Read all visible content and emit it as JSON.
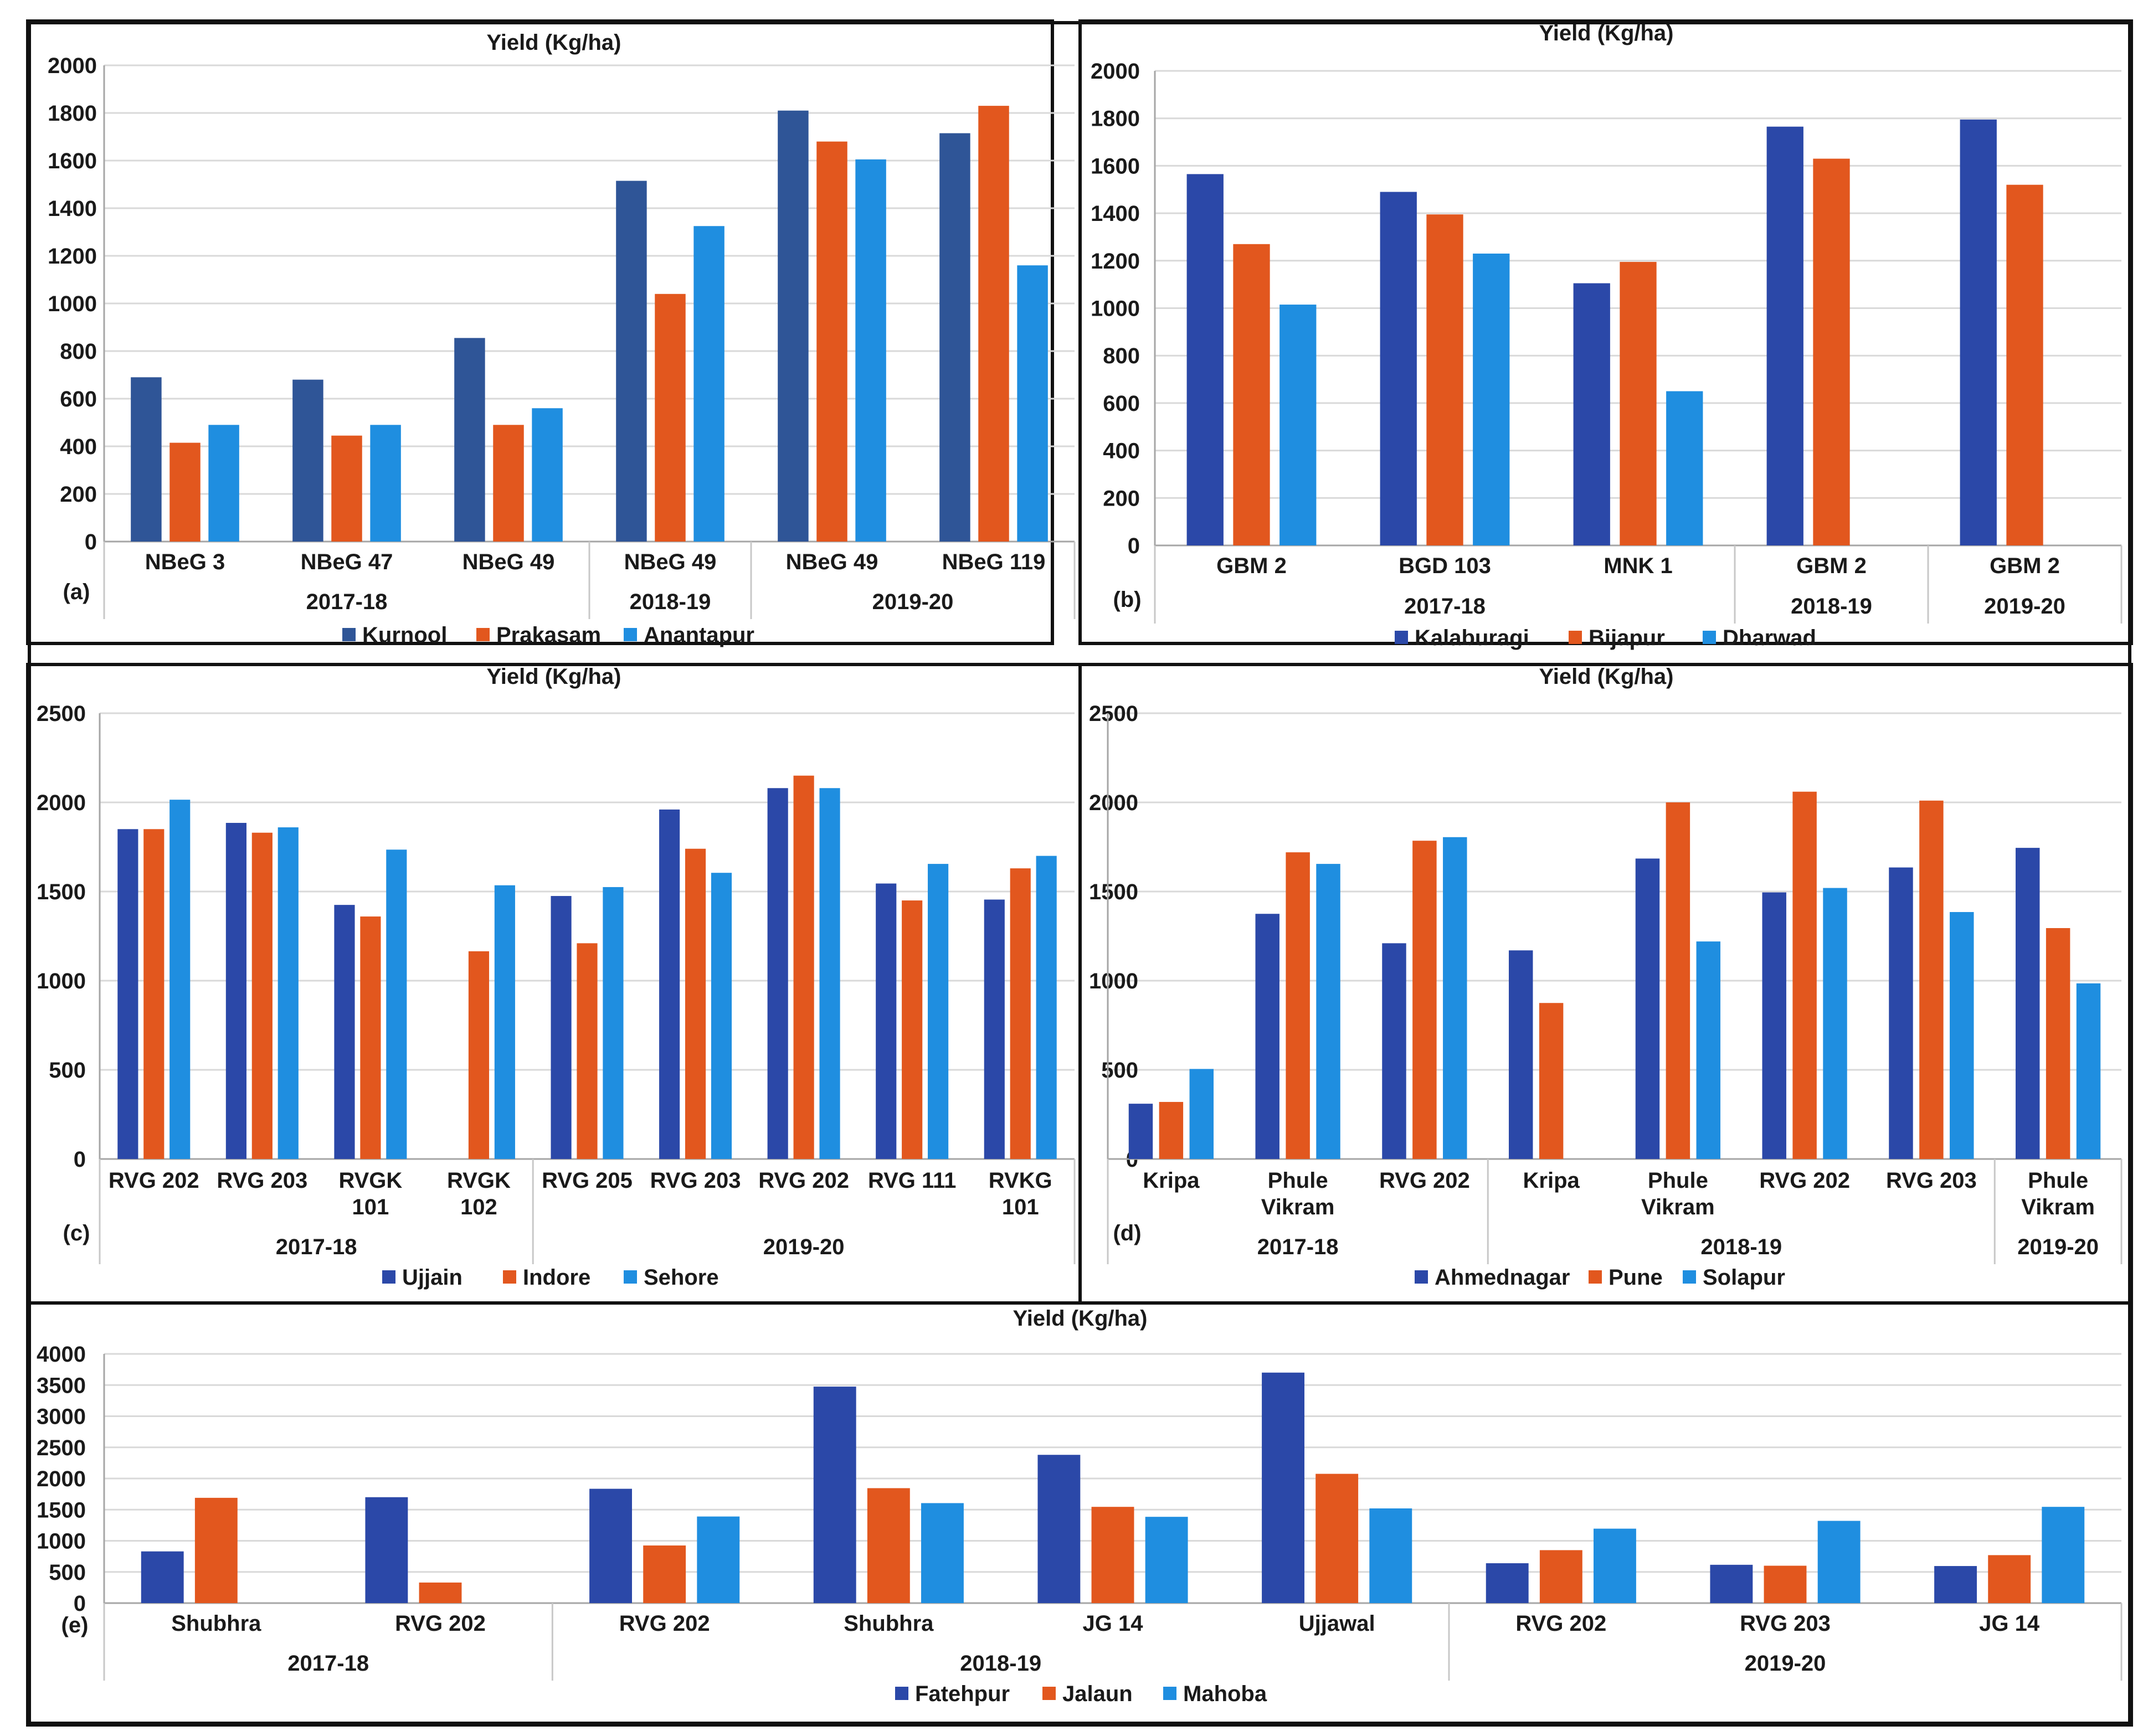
{
  "colors": {
    "gridline": "#d9d9d9",
    "axis": "#a6a6a6",
    "text": "#1a1a1a"
  },
  "chart_data": [
    {
      "id": "a",
      "type": "bar",
      "title": "Yield (Kg/ha)",
      "panel_label": "(a)",
      "ylim": [
        0,
        2000
      ],
      "yticks": [
        0,
        200,
        400,
        600,
        800,
        1000,
        1200,
        1400,
        1600,
        1800,
        2000
      ],
      "categories": [
        "NBeG 3",
        "NBeG 47",
        "NBeG 49",
        "NBeG 49",
        "NBeG 49",
        "NBeG 119"
      ],
      "groups": [
        {
          "label": "2017-18",
          "span": 3
        },
        {
          "label": "2018-19",
          "span": 1
        },
        {
          "label": "2019-20",
          "span": 2
        }
      ],
      "series": [
        {
          "name": "Kurnool",
          "color": "#2f5597",
          "values": [
            690,
            680,
            855,
            1515,
            1810,
            1715
          ]
        },
        {
          "name": "Prakasam",
          "color": "#e2571e",
          "values": [
            415,
            445,
            490,
            1040,
            1680,
            1830
          ]
        },
        {
          "name": "Anantapur",
          "color": "#1f8ee0",
          "values": [
            490,
            490,
            560,
            1325,
            1605,
            1160
          ]
        }
      ],
      "grid": true
    },
    {
      "id": "b",
      "type": "bar",
      "title": "Yield (Kg/ha)",
      "panel_label": "(b)",
      "ylim": [
        0,
        2000
      ],
      "yticks": [
        0,
        200,
        400,
        600,
        800,
        1000,
        1200,
        1400,
        1600,
        1800,
        2000
      ],
      "categories": [
        "GBM 2",
        "BGD 103",
        "MNK 1",
        "GBM 2",
        "GBM 2"
      ],
      "groups": [
        {
          "label": "2017-18",
          "span": 3
        },
        {
          "label": "2018-19",
          "span": 1
        },
        {
          "label": "2019-20",
          "span": 1
        }
      ],
      "series": [
        {
          "name": "Kalaburagi",
          "color": "#2b48a8",
          "values": [
            1565,
            1490,
            1105,
            1765,
            1795
          ]
        },
        {
          "name": "Bijapur",
          "color": "#e2571e",
          "values": [
            1270,
            1395,
            1195,
            1630,
            1520
          ]
        },
        {
          "name": "Dharwad",
          "color": "#1f8ee0",
          "values": [
            1015,
            1230,
            650,
            null,
            null
          ]
        }
      ],
      "grid": true
    },
    {
      "id": "c",
      "type": "bar",
      "title": "Yield (Kg/ha)",
      "panel_label": "(c)",
      "ylim": [
        0,
        2500
      ],
      "yticks": [
        0,
        500,
        1000,
        1500,
        2000,
        2500
      ],
      "categories": [
        "RVG 202",
        "RVG 203",
        "RVGK\n101",
        "RVGK\n102",
        "RVG 205",
        "RVG 203",
        "RVG 202",
        "RVG 111",
        "RVKG\n101"
      ],
      "groups": [
        {
          "label": "2017-18",
          "span": 4
        },
        {
          "label": "2019-20",
          "span": 5
        }
      ],
      "series": [
        {
          "name": "Ujjain",
          "color": "#2b48a8",
          "values": [
            1850,
            1885,
            1425,
            null,
            1475,
            1960,
            2080,
            1545,
            1455
          ]
        },
        {
          "name": "Indore",
          "color": "#e2571e",
          "values": [
            1850,
            1830,
            1360,
            1165,
            1210,
            1740,
            2150,
            1450,
            1630
          ]
        },
        {
          "name": "Sehore",
          "color": "#1f8ee0",
          "values": [
            2015,
            1860,
            1735,
            1535,
            1525,
            1605,
            2080,
            1655,
            1700
          ]
        }
      ],
      "grid": true
    },
    {
      "id": "d",
      "type": "bar",
      "title": "Yield (Kg/ha)",
      "panel_label": "(d)",
      "ylim": [
        0,
        2500
      ],
      "yticks": [
        0,
        500,
        1000,
        1500,
        2000,
        2500
      ],
      "categories": [
        "Kripa",
        "Phule\nVikram",
        "RVG 202",
        "Kripa",
        "Phule\nVikram",
        "RVG 202",
        "RVG 203",
        "Phule\nVikram"
      ],
      "groups": [
        {
          "label": "2017-18",
          "span": 3
        },
        {
          "label": "2018-19",
          "span": 4
        },
        {
          "label": "2019-20",
          "span": 1
        }
      ],
      "series": [
        {
          "name": "Ahmednagar",
          "color": "#2b48a8",
          "values": [
            310,
            1375,
            1210,
            1170,
            1685,
            1495,
            1635,
            1745
          ]
        },
        {
          "name": "Pune",
          "color": "#e2571e",
          "values": [
            320,
            1720,
            1785,
            875,
            2000,
            2060,
            2010,
            1295
          ]
        },
        {
          "name": "Solapur",
          "color": "#1f8ee0",
          "values": [
            505,
            1655,
            1805,
            null,
            1220,
            1520,
            1385,
            985
          ]
        }
      ],
      "grid": true
    },
    {
      "id": "e",
      "type": "bar",
      "title": "Yield (Kg/ha)",
      "panel_label": "(e)",
      "ylim": [
        0,
        4000
      ],
      "yticks": [
        0,
        500,
        1000,
        1500,
        2000,
        2500,
        3000,
        3500,
        4000
      ],
      "categories": [
        "Shubhra",
        "RVG 202",
        "RVG 202",
        "Shubhra",
        "JG 14",
        "Ujjawal",
        "RVG 202",
        "RVG 203",
        "JG 14"
      ],
      "groups": [
        {
          "label": "2017-18",
          "span": 2
        },
        {
          "label": "2018-19",
          "span": 4
        },
        {
          "label": "2019-20",
          "span": 3
        }
      ],
      "series": [
        {
          "name": "Fatehpur",
          "color": "#2b48a8",
          "values": [
            830,
            1700,
            1835,
            3475,
            2380,
            3700,
            640,
            615,
            595
          ]
        },
        {
          "name": "Jalaun",
          "color": "#e2571e",
          "values": [
            1690,
            330,
            925,
            1845,
            1545,
            2075,
            850,
            600,
            770
          ]
        },
        {
          "name": "Mahoba",
          "color": "#1f8ee0",
          "values": [
            null,
            null,
            1390,
            1605,
            1385,
            1520,
            1195,
            1320,
            1545
          ]
        }
      ],
      "grid": true
    }
  ]
}
